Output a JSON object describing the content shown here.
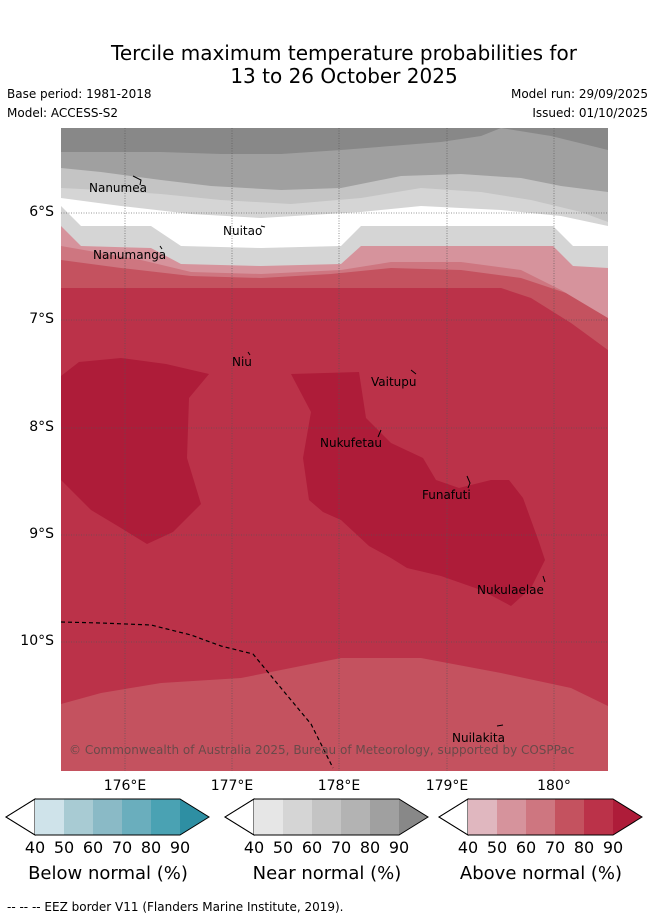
{
  "title_line1": "Tercile maximum temperature probabilities for",
  "title_line2": "13 to 26 October 2025",
  "base_period": "Base period: 1981-2018",
  "model": "Model: ACCESS-S2",
  "model_run": "Model run: 29/09/2025",
  "issued": "Issued: 01/10/2025",
  "lat_labels": [
    "6°S",
    "7°S",
    "8°S",
    "9°S",
    "10°S"
  ],
  "lon_labels": [
    "176°E",
    "177°E",
    "178°E",
    "179°E",
    "180°"
  ],
  "places": {
    "nanumea": "Nanumea",
    "nuitao": "Nuitao",
    "nanumanga": "Nanumanga",
    "niu": "Niu",
    "vaitupu": "Vaitupu",
    "nukufetau": "Nukufetau",
    "funafuti": "Funafuti",
    "nukulaelae": "Nukulaelae",
    "nuilakita": "Nuilakita"
  },
  "copyright": "© Commonwealth of Australia 2025, Bureau of Meteorology, supported by COSPPac",
  "colorbars": [
    {
      "title": "Below normal (%)",
      "ticks": [
        "40",
        "50",
        "60",
        "70",
        "80",
        "90"
      ],
      "colors": [
        "#cfe3ea",
        "#a8cbd3",
        "#8abac6",
        "#6aaebd",
        "#4aa2b3",
        "#2e8fa3"
      ]
    },
    {
      "title": "Near normal (%)",
      "ticks": [
        "40",
        "50",
        "60",
        "70",
        "80",
        "90"
      ],
      "colors": [
        "#e6e6e6",
        "#d5d5d5",
        "#c4c4c4",
        "#b3b3b3",
        "#a0a0a0",
        "#888888"
      ]
    },
    {
      "title": "Above normal (%)",
      "ticks": [
        "40",
        "50",
        "60",
        "70",
        "80",
        "90"
      ],
      "colors": [
        "#e0b7bf",
        "#d6939c",
        "#ce7680",
        "#c4525f",
        "#bb3249",
        "#ae1c39"
      ]
    }
  ],
  "footer": "--  --  -- EEZ border V11 (Flanders Marine Institute, 2019)."
}
